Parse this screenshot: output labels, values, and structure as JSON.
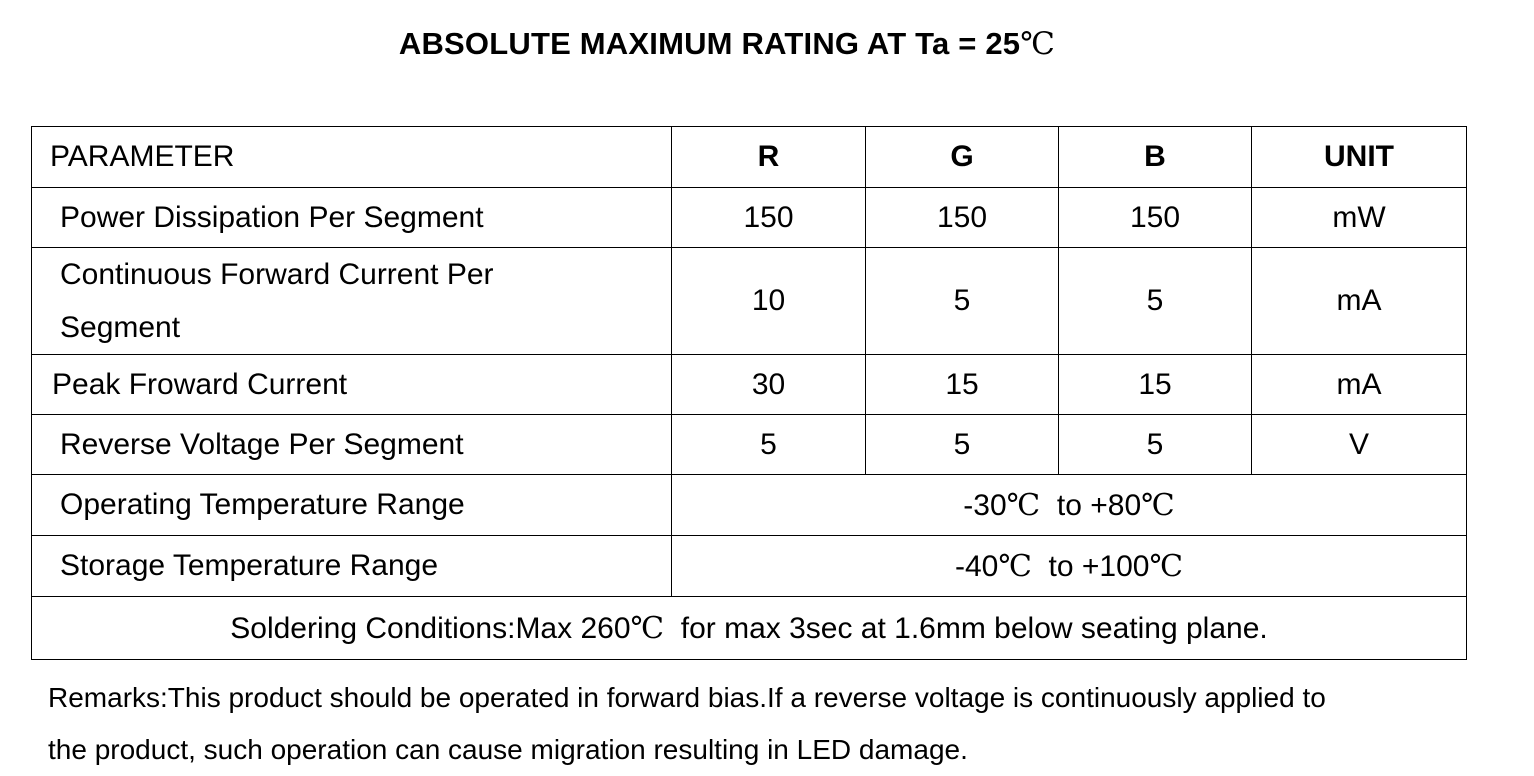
{
  "title": {
    "main": "ABSOLUTE MAXIMUM RATING AT Ta = 25",
    "unit_symbol": "℃"
  },
  "table": {
    "headers": {
      "parameter": "PARAMETER",
      "r": "R",
      "g": "G",
      "b": "B",
      "unit": "UNIT"
    },
    "rows": [
      {
        "parameter": "Power Dissipation Per Segment",
        "r": "150",
        "g": "150",
        "b": "150",
        "unit": "mW"
      },
      {
        "parameter_line1": "Continuous Forward Current Per",
        "parameter_line2": "Segment",
        "r": "10",
        "g": "5",
        "b": "5",
        "unit": "mA"
      },
      {
        "parameter": "Peak Froward Current",
        "r": "30",
        "g": "15",
        "b": "15",
        "unit": "mA"
      },
      {
        "parameter": "Reverse Voltage Per Segment",
        "r": "5",
        "g": "5",
        "b": "5",
        "unit": "V"
      }
    ],
    "operating_temp": {
      "parameter": "Operating Temperature Range",
      "low": "-30",
      "to": "  to +80",
      "symbol": "℃"
    },
    "storage_temp": {
      "parameter": "Storage Temperature Range",
      "low": "-40",
      "to": "  to +100",
      "symbol": "℃"
    },
    "soldering": {
      "prefix": "Soldering Conditions:Max 260",
      "symbol": "℃",
      "suffix": "  for max 3sec at 1.6mm below seating plane."
    }
  },
  "remarks": {
    "line1": "Remarks:This product should be operated in forward bias.If a reverse voltage is continuously applied to",
    "line2": "the product, such operation can cause migration resulting in LED damage."
  }
}
